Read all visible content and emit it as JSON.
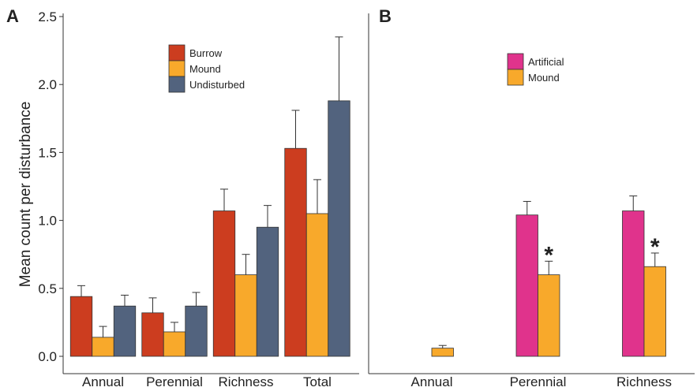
{
  "chart_data": [
    {
      "type": "bar",
      "panel_label": "A",
      "categories": [
        "Annual",
        "Perennial",
        "Richness",
        "Total"
      ],
      "ylabel": "Mean count per disturbance",
      "ylim": [
        0,
        2.5
      ],
      "yticks": [
        "0.0",
        "0.5",
        "1.0",
        "1.5",
        "2.0",
        "2.5"
      ],
      "ytick_values": [
        0,
        0.5,
        1.0,
        1.5,
        2.0,
        2.5
      ],
      "legend_position": "top-center",
      "series": [
        {
          "name": "Burrow",
          "color": "#cc3d1f",
          "values": [
            0.44,
            0.32,
            1.07,
            1.53
          ],
          "errors": [
            0.08,
            0.11,
            0.16,
            0.28
          ]
        },
        {
          "name": "Mound",
          "color": "#f8a92b",
          "values": [
            0.14,
            0.18,
            0.6,
            1.05
          ],
          "errors": [
            0.08,
            0.07,
            0.15,
            0.25
          ]
        },
        {
          "name": "Undisturbed",
          "color": "#52637e",
          "values": [
            0.37,
            0.37,
            0.95,
            1.88
          ],
          "errors": [
            0.08,
            0.1,
            0.16,
            0.47
          ]
        }
      ]
    },
    {
      "type": "bar",
      "panel_label": "B",
      "categories": [
        "Annual",
        "Perennial",
        "Richness"
      ],
      "ylim": [
        0,
        2.5
      ],
      "legend_position": "top-center",
      "annotations": [
        {
          "text": "*",
          "series": "Mound",
          "category": "Perennial"
        },
        {
          "text": "*",
          "series": "Mound",
          "category": "Richness"
        }
      ],
      "series": [
        {
          "name": "Artificial",
          "color": "#e0338c",
          "values": [
            0.0,
            1.04,
            1.07
          ],
          "errors": [
            0.0,
            0.1,
            0.11
          ]
        },
        {
          "name": "Mound",
          "color": "#f8a92b",
          "values": [
            0.06,
            0.6,
            0.66
          ],
          "errors": [
            0.02,
            0.1,
            0.1
          ]
        }
      ]
    }
  ]
}
